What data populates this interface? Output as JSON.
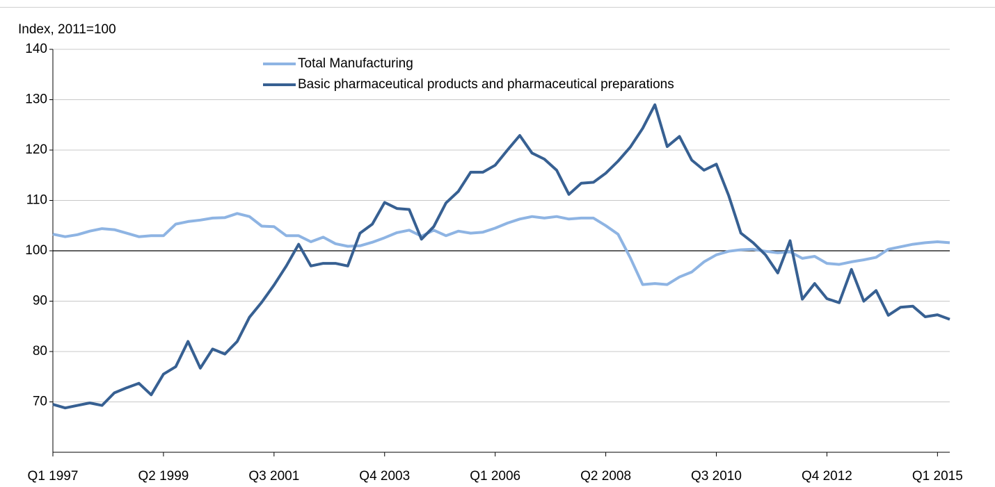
{
  "chart_data": {
    "type": "line",
    "y_axis_label": "Index, 2011=100",
    "categories": [
      "Q1 1997",
      null,
      null,
      null,
      null,
      null,
      null,
      null,
      null,
      "Q2 1999",
      null,
      null,
      null,
      null,
      null,
      null,
      null,
      null,
      "Q3 2001",
      null,
      null,
      null,
      null,
      null,
      null,
      null,
      null,
      "Q4 2003",
      null,
      null,
      null,
      null,
      null,
      null,
      null,
      null,
      "Q1 2006",
      null,
      null,
      null,
      null,
      null,
      null,
      null,
      null,
      "Q2 2008",
      null,
      null,
      null,
      null,
      null,
      null,
      null,
      null,
      "Q3 2010",
      null,
      null,
      null,
      null,
      null,
      null,
      null,
      null,
      "Q4 2012",
      null,
      null,
      null,
      null,
      null,
      null,
      null,
      null,
      "Q1 2015",
      null
    ],
    "series": [
      {
        "name": "Total Manufacturing",
        "color": "#8eb4e3",
        "values": [
          103.3,
          102.8,
          103.2,
          103.9,
          104.4,
          104.2,
          103.5,
          102.8,
          103,
          103,
          105.3,
          105.8,
          106.1,
          106.5,
          106.6,
          107.4,
          106.8,
          104.9,
          104.8,
          103,
          103,
          101.8,
          102.7,
          101.4,
          100.9,
          101,
          101.7,
          102.6,
          103.6,
          104.1,
          102.9,
          104.1,
          103,
          103.9,
          103.5,
          103.7,
          104.5,
          105.5,
          106.3,
          106.8,
          106.5,
          106.8,
          106.3,
          106.5,
          106.5,
          105,
          103.3,
          98.6,
          93.3,
          93.5,
          93.3,
          94.8,
          95.8,
          97.8,
          99.2,
          99.9,
          100.2,
          100.3,
          99.9,
          99.6,
          99.8,
          98.5,
          98.9,
          97.5,
          97.3,
          97.8,
          98.2,
          98.7,
          100.3,
          100.8,
          101.3,
          101.6,
          101.8,
          101.6
        ]
      },
      {
        "name": "Basic pharmaceutical products and pharmaceutical preparations",
        "color": "#376092",
        "values": [
          69.5,
          68.8,
          69.3,
          69.8,
          69.3,
          71.8,
          72.8,
          73.7,
          71.4,
          75.5,
          77,
          82,
          76.7,
          80.5,
          79.5,
          82,
          86.8,
          89.8,
          93.2,
          97,
          101.3,
          97,
          97.5,
          97.5,
          97,
          103.5,
          105.3,
          109.6,
          108.4,
          108.2,
          102.3,
          104.8,
          109.5,
          111.8,
          115.6,
          115.6,
          117,
          120,
          122.9,
          119.4,
          118.2,
          116,
          111.2,
          113.4,
          113.6,
          115.4,
          117.8,
          120.6,
          124.3,
          129,
          120.7,
          122.7,
          118,
          116,
          117.2,
          111,
          103.5,
          101.6,
          99.2,
          95.6,
          102,
          90.4,
          93.5,
          90.5,
          89.7,
          96.3,
          90,
          92.1,
          87.2,
          88.8,
          89,
          86.9,
          87.3,
          86.4
        ]
      }
    ],
    "ylim": [
      60,
      140
    ],
    "yticks": [
      70,
      80,
      90,
      100,
      110,
      120,
      130,
      140
    ],
    "reference_line": 100,
    "grid": true,
    "legend": "top"
  }
}
